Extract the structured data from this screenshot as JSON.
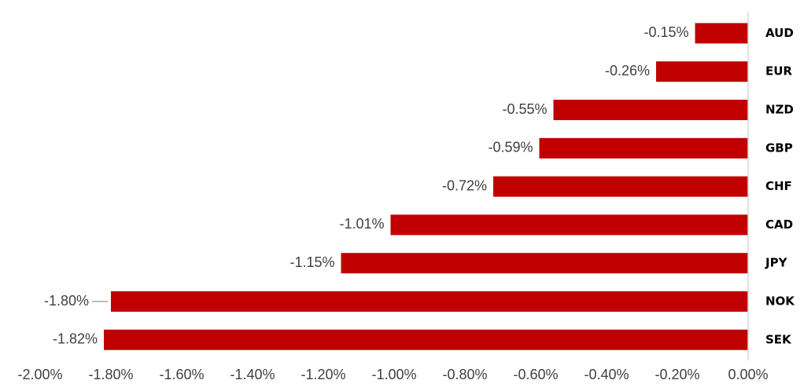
{
  "chart_data": {
    "type": "bar",
    "orientation": "horizontal",
    "categories": [
      "AUD",
      "EUR",
      "NZD",
      "GBP",
      "CHF",
      "CAD",
      "JPY",
      "NOK",
      "SEK"
    ],
    "values": [
      -0.15,
      -0.26,
      -0.55,
      -0.59,
      -0.72,
      -1.01,
      -1.15,
      -1.8,
      -1.82
    ],
    "data_labels": [
      "-0.15%",
      "-0.26%",
      "-0.55%",
      "-0.59%",
      "-0.72%",
      "-1.01%",
      "-1.15%",
      "-1.80%",
      "-1.82%"
    ],
    "x_ticks": [
      -2.0,
      -1.8,
      -1.6,
      -1.4,
      -1.2,
      -1.0,
      -0.8,
      -0.6,
      -0.4,
      -0.2,
      0.0
    ],
    "x_tick_labels": [
      "-2.00%",
      "-1.80%",
      "-1.60%",
      "-1.40%",
      "-1.20%",
      "-1.00%",
      "-0.80%",
      "-0.60%",
      "-0.40%",
      "-0.20%",
      "0.00%"
    ],
    "xlim": [
      -2.0,
      0.0
    ],
    "bar_color": "#c00000",
    "axis_color": "#d9d9d9",
    "label_color": "#404040",
    "category_label_position": "right",
    "grid": false,
    "legend": false
  }
}
